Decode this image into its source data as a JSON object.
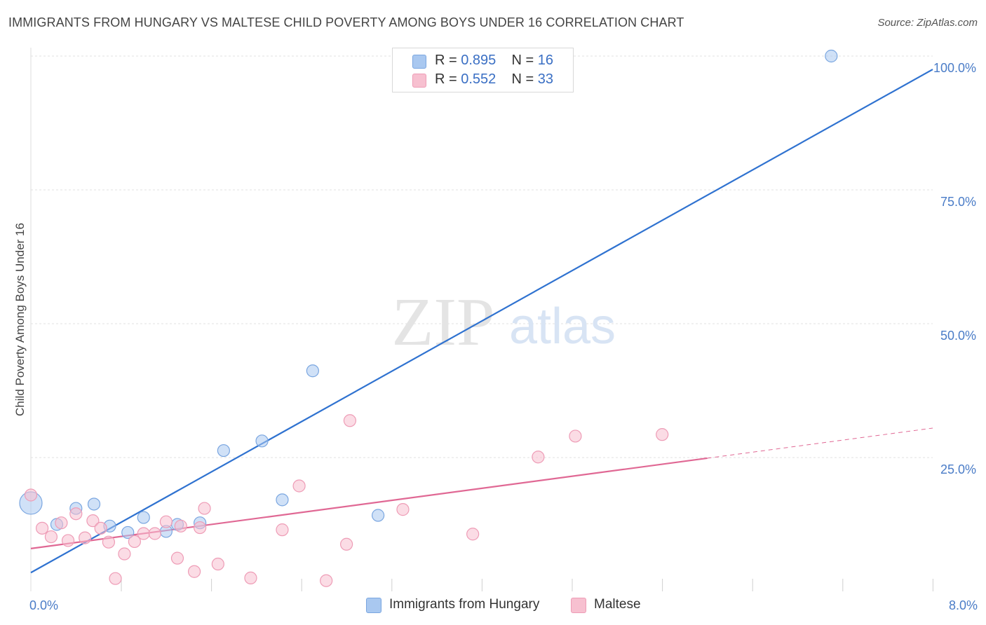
{
  "title": "IMMIGRANTS FROM HUNGARY VS MALTESE CHILD POVERTY AMONG BOYS UNDER 16 CORRELATION CHART",
  "source": "Source: ZipAtlas.com",
  "watermark": {
    "zip": "ZIP",
    "atlas": "atlas"
  },
  "legend": {
    "rows": [
      {
        "r_label": "R = ",
        "r_value": "0.895",
        "n_label": "N = ",
        "n_value": "16",
        "color": "#a9c8f0",
        "border": "#7aa6e0"
      },
      {
        "r_label": "R = ",
        "r_value": "0.552",
        "n_label": "N = ",
        "n_value": "33",
        "color": "#f7c0d0",
        "border": "#ee9cb6"
      }
    ]
  },
  "chart_data": {
    "type": "scatter",
    "xlabel": "",
    "ylabel": "Child Poverty Among Boys Under 16",
    "xlim": [
      0,
      8
    ],
    "ylim": [
      0,
      100
    ],
    "x_tick_labels": [
      "0.0%",
      "8.0%"
    ],
    "y_ticks": [
      25,
      50,
      75,
      100
    ],
    "y_tick_labels": [
      "25.0%",
      "50.0%",
      "75.0%",
      "100.0%"
    ],
    "grid": true,
    "legend_position": "bottom",
    "series": [
      {
        "name": "Immigrants from Hungary",
        "color": "#a9c8f0",
        "stroke": "#7aa6e0",
        "line_color": "#2f72d0",
        "trend": {
          "x0": 0.0,
          "y0": 3.5,
          "x1": 8.0,
          "y1": 97.5,
          "dashed_from": null
        },
        "points": [
          {
            "x": 0.0,
            "y": 16.5,
            "big": true
          },
          {
            "x": 0.23,
            "y": 12.5
          },
          {
            "x": 0.4,
            "y": 15.5
          },
          {
            "x": 0.56,
            "y": 16.3
          },
          {
            "x": 0.7,
            "y": 12.2
          },
          {
            "x": 0.86,
            "y": 11.0
          },
          {
            "x": 1.0,
            "y": 13.8
          },
          {
            "x": 1.2,
            "y": 11.2
          },
          {
            "x": 1.3,
            "y": 12.5
          },
          {
            "x": 1.5,
            "y": 12.8
          },
          {
            "x": 1.71,
            "y": 26.3
          },
          {
            "x": 2.05,
            "y": 28.1
          },
          {
            "x": 2.23,
            "y": 17.1
          },
          {
            "x": 2.5,
            "y": 41.2
          },
          {
            "x": 3.08,
            "y": 14.2
          },
          {
            "x": 7.1,
            "y": 100.0
          }
        ]
      },
      {
        "name": "Maltese",
        "color": "#f7c0d0",
        "stroke": "#ee9cb6",
        "line_color": "#e06894",
        "trend": {
          "x0": 0.0,
          "y0": 8.0,
          "x1": 8.0,
          "y1": 30.5,
          "dashed_from": 6.0
        },
        "points": [
          {
            "x": 0.0,
            "y": 18.0
          },
          {
            "x": 0.1,
            "y": 11.8
          },
          {
            "x": 0.18,
            "y": 10.2
          },
          {
            "x": 0.27,
            "y": 12.8
          },
          {
            "x": 0.33,
            "y": 9.5
          },
          {
            "x": 0.4,
            "y": 14.5
          },
          {
            "x": 0.48,
            "y": 10.0
          },
          {
            "x": 0.55,
            "y": 13.2
          },
          {
            "x": 0.62,
            "y": 11.8
          },
          {
            "x": 0.69,
            "y": 9.2
          },
          {
            "x": 0.75,
            "y": 2.4
          },
          {
            "x": 0.83,
            "y": 7.0
          },
          {
            "x": 0.92,
            "y": 9.3
          },
          {
            "x": 1.0,
            "y": 10.8
          },
          {
            "x": 1.1,
            "y": 10.8
          },
          {
            "x": 1.2,
            "y": 13.0
          },
          {
            "x": 1.3,
            "y": 6.2
          },
          {
            "x": 1.33,
            "y": 12.2
          },
          {
            "x": 1.45,
            "y": 3.7
          },
          {
            "x": 1.5,
            "y": 11.9
          },
          {
            "x": 1.54,
            "y": 15.5
          },
          {
            "x": 1.66,
            "y": 5.1
          },
          {
            "x": 1.95,
            "y": 2.5
          },
          {
            "x": 2.23,
            "y": 11.5
          },
          {
            "x": 2.38,
            "y": 19.7
          },
          {
            "x": 2.62,
            "y": 2.0
          },
          {
            "x": 2.8,
            "y": 8.8
          },
          {
            "x": 2.83,
            "y": 31.9
          },
          {
            "x": 3.3,
            "y": 15.3
          },
          {
            "x": 3.92,
            "y": 10.7
          },
          {
            "x": 4.5,
            "y": 25.1
          },
          {
            "x": 4.83,
            "y": 29.0
          },
          {
            "x": 5.6,
            "y": 29.3
          }
        ]
      }
    ]
  }
}
